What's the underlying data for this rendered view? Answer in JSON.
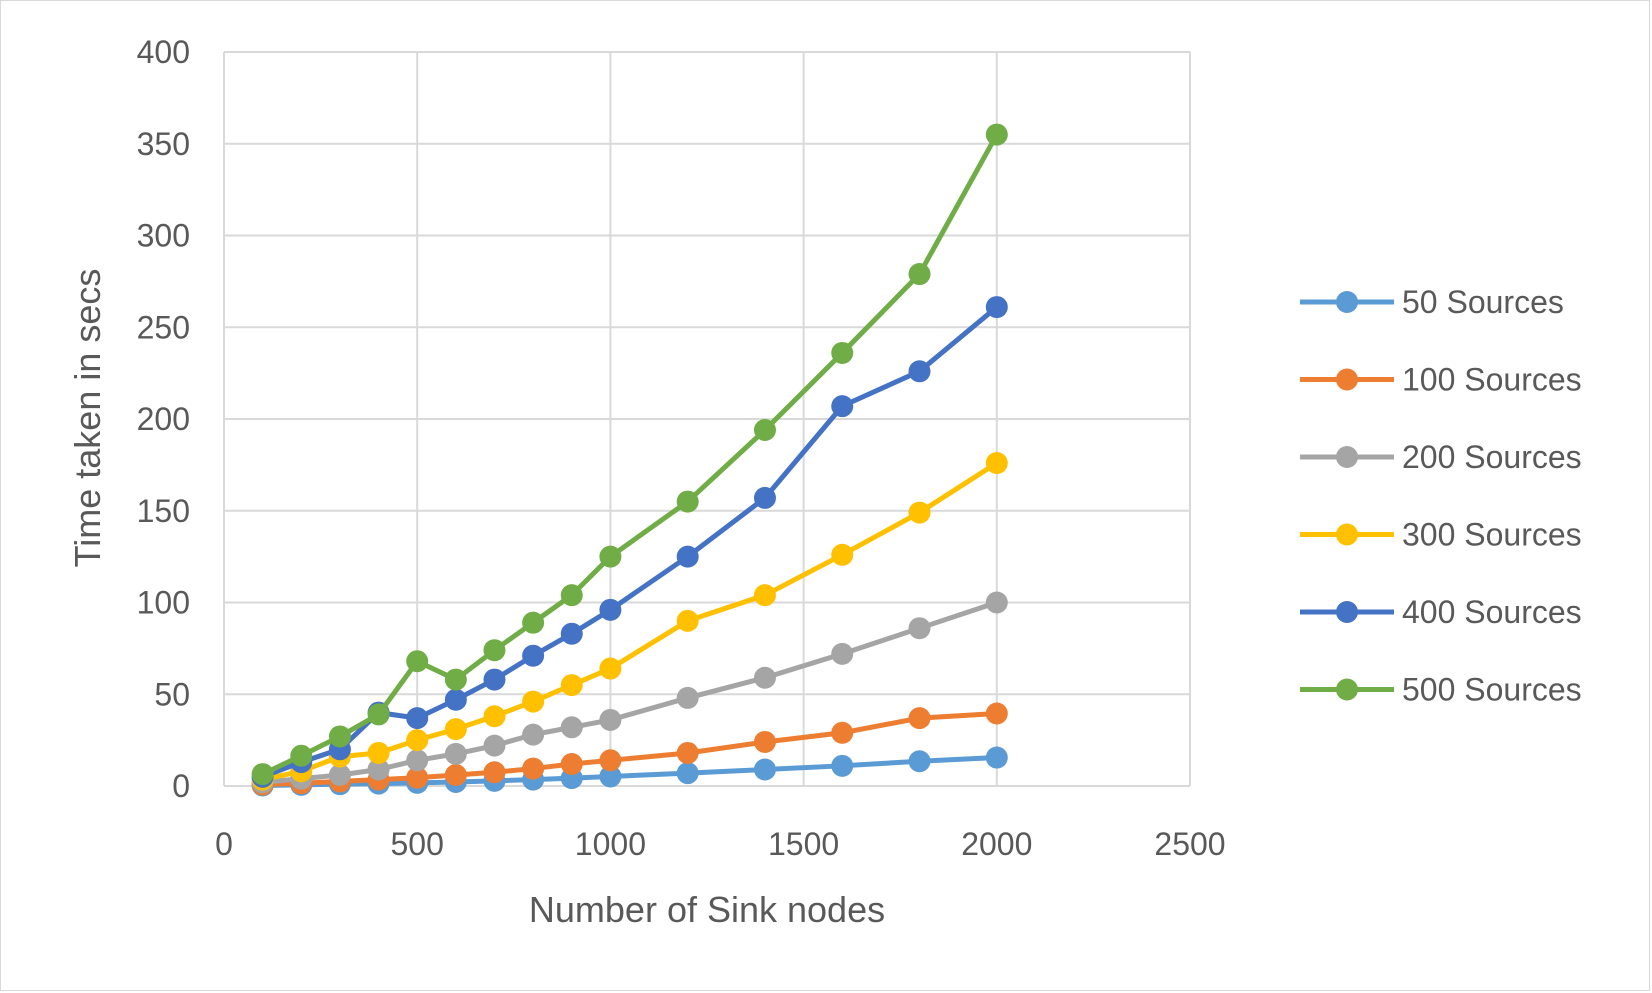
{
  "chart_data": {
    "type": "line",
    "title": "",
    "xlabel": "Number of Sink nodes",
    "ylabel": "Time taken in secs",
    "xlim": [
      0,
      2500
    ],
    "ylim": [
      0,
      400
    ],
    "xticks": [
      0,
      500,
      1000,
      1500,
      2000,
      2500
    ],
    "yticks": [
      0,
      50,
      100,
      150,
      200,
      250,
      300,
      350,
      400
    ],
    "grid": true,
    "legend_position": "right",
    "x": [
      100,
      200,
      300,
      400,
      500,
      600,
      700,
      800,
      900,
      1000,
      1200,
      1400,
      1600,
      1800,
      2000
    ],
    "series": [
      {
        "name": "50 Sources",
        "color": "#5b9bd5",
        "values": [
          0.3,
          0.6,
          1,
          1.3,
          1.7,
          2.2,
          2.8,
          3.5,
          4.3,
          5.2,
          7,
          9,
          11,
          13.5,
          15.5
        ]
      },
      {
        "name": "100 Sources",
        "color": "#ed7d31",
        "values": [
          0.8,
          1.5,
          2.5,
          3.5,
          4.5,
          6,
          7.5,
          9.5,
          12,
          14,
          18,
          24,
          29,
          37,
          39.5
        ]
      },
      {
        "name": "200 Sources",
        "color": "#a5a5a5",
        "values": [
          2,
          4,
          6,
          9,
          14,
          17.5,
          22,
          28,
          32,
          36,
          48,
          59,
          72,
          86,
          100
        ]
      },
      {
        "name": "300 Sources",
        "color": "#ffc000",
        "values": [
          3.5,
          8,
          16,
          18,
          25,
          31,
          38,
          46,
          55,
          64,
          90,
          104,
          126,
          149,
          176
        ]
      },
      {
        "name": "400 Sources",
        "color": "#4472c4",
        "values": [
          5,
          13,
          20,
          40,
          37,
          47,
          58,
          71,
          83,
          96,
          125,
          157,
          207,
          226,
          261
        ]
      },
      {
        "name": "500 Sources",
        "color": "#70ad47",
        "values": [
          6.5,
          16.5,
          27,
          39,
          68,
          58,
          74,
          89,
          104,
          125,
          155,
          194,
          236,
          279,
          355
        ]
      }
    ]
  }
}
